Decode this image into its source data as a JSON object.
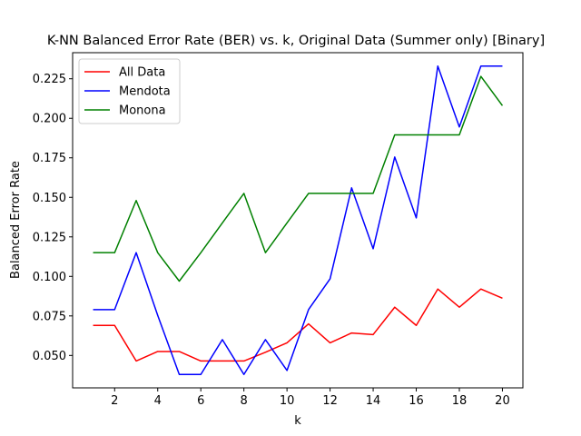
{
  "chart_data": {
    "type": "line",
    "title": "K-NN Balanced Error Rate (BER) vs. k, Original Data (Summer only) [Binary]",
    "xlabel": "k",
    "ylabel": "Balanced Error Rate",
    "xlim": [
      0.05,
      20.95
    ],
    "ylim": [
      0.0295,
      0.2415
    ],
    "xticks": [
      2,
      4,
      6,
      8,
      10,
      12,
      14,
      16,
      18,
      20
    ],
    "xtick_labels": [
      "2",
      "4",
      "6",
      "8",
      "10",
      "12",
      "14",
      "16",
      "18",
      "20"
    ],
    "yticks": [
      0.05,
      0.075,
      0.1,
      0.125,
      0.15,
      0.175,
      0.2,
      0.225
    ],
    "ytick_labels": [
      "0.050",
      "0.075",
      "0.100",
      "0.125",
      "0.150",
      "0.175",
      "0.200",
      "0.225"
    ],
    "grid": false,
    "legend_position": "upper-left",
    "x": [
      1,
      2,
      3,
      4,
      5,
      6,
      7,
      8,
      9,
      10,
      11,
      12,
      13,
      14,
      15,
      16,
      17,
      18,
      19,
      20
    ],
    "series": [
      {
        "name": "All Data",
        "color": "#ff0000",
        "values": [
          0.069,
          0.069,
          0.0465,
          0.0525,
          0.0525,
          0.0465,
          0.0465,
          0.0465,
          0.052,
          0.058,
          0.07,
          0.058,
          0.0642,
          0.0632,
          0.0805,
          0.069,
          0.092,
          0.0805,
          0.092,
          0.0862
        ]
      },
      {
        "name": "Mendota",
        "color": "#0000ff",
        "values": [
          0.079,
          0.079,
          0.115,
          0.0753,
          0.038,
          0.038,
          0.06,
          0.038,
          0.06,
          0.0405,
          0.079,
          0.0985,
          0.156,
          0.1175,
          0.1755,
          0.137,
          0.233,
          0.1945,
          0.233,
          0.233
        ]
      },
      {
        "name": "Monona",
        "color": "#008000",
        "values": [
          0.115,
          0.115,
          0.148,
          0.115,
          0.097,
          0.115,
          0.1338,
          0.1525,
          0.115,
          0.1338,
          0.1525,
          0.1525,
          0.1525,
          0.1525,
          0.1895,
          0.1895,
          0.1895,
          0.1895,
          0.2265,
          0.208
        ]
      }
    ]
  }
}
